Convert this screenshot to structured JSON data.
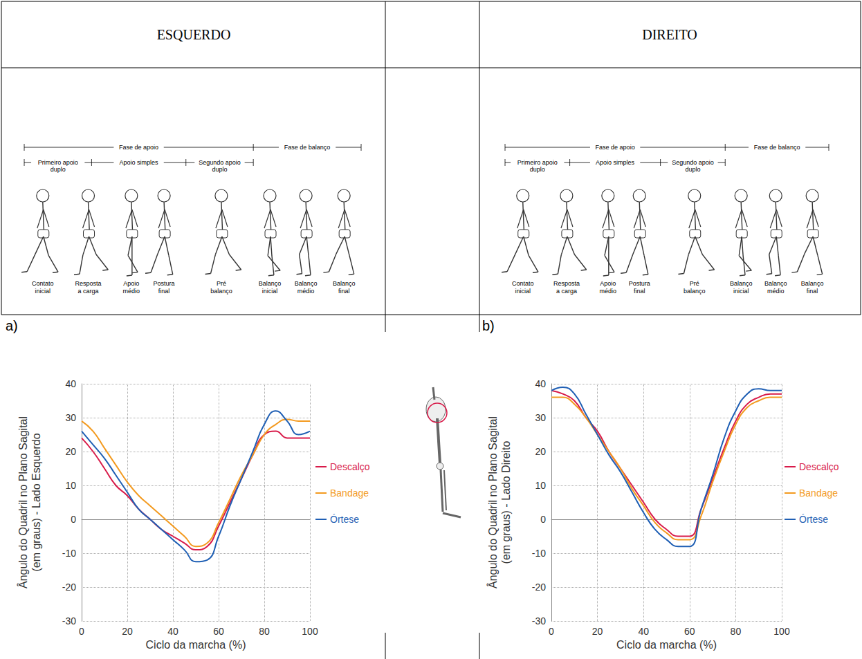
{
  "header": {
    "left": "ESQUERDO",
    "right": "DIREITO"
  },
  "gait_diagram": {
    "stance": "Fase de apoio",
    "swing": "Fase de balanço",
    "sub_phases": [
      "Primeiro apoio duplo",
      "Apoio simples",
      "Segundo apoio duplo"
    ],
    "phases": [
      "Contato inicial",
      "Resposta a carga",
      "Apoio médio",
      "Postura final",
      "Pré balanço",
      "Balanço inicial",
      "Balanço médio",
      "Balanço final"
    ]
  },
  "chart_data": [
    {
      "type": "line",
      "panel": "a)",
      "x_label": "Ciclo da marcha (%)",
      "y_label": "Ângulo do Quadril no Plano Sagital (em graus) - Lado Esquerdo",
      "xlim": [
        0,
        100
      ],
      "xticks": [
        0,
        20,
        40,
        60,
        80,
        100
      ],
      "ylim": [
        -30,
        40
      ],
      "yticks": [
        -30,
        -20,
        -10,
        0,
        10,
        20,
        30,
        40
      ],
      "grid": true,
      "legend": "right",
      "x": [
        0,
        5,
        10,
        15,
        20,
        25,
        30,
        35,
        40,
        45,
        50,
        55,
        60,
        65,
        70,
        75,
        80,
        85,
        90,
        95,
        100
      ],
      "series": [
        {
          "name": "Descalço",
          "color": "#d81b4a",
          "values": [
            24,
            20,
            15,
            10,
            7,
            3,
            0,
            -3,
            -5,
            -7,
            -9,
            -8,
            -2,
            5,
            12,
            19,
            25,
            26,
            24,
            24,
            24
          ]
        },
        {
          "name": "Bandage",
          "color": "#f39a1f",
          "values": [
            29,
            26,
            21,
            16,
            11,
            7,
            4,
            1,
            -2,
            -5,
            -8,
            -7,
            -1,
            6,
            13,
            19,
            25,
            28,
            29.5,
            29,
            29
          ]
        },
        {
          "name": "Órtese",
          "color": "#1f5fb4",
          "values": [
            26,
            22,
            18,
            13,
            8,
            3,
            0,
            -3,
            -6,
            -9,
            -12.5,
            -12,
            -5,
            4,
            12,
            20,
            28,
            32,
            29,
            25,
            26
          ]
        }
      ]
    },
    {
      "type": "line",
      "panel": "b)",
      "x_label": "Ciclo da marcha (%)",
      "y_label": "Ângulo do Quadril no Plano Sagital (em graus) - Lado Direito",
      "xlim": [
        0,
        100
      ],
      "xticks": [
        0,
        20,
        40,
        60,
        80,
        100
      ],
      "ylim": [
        -30,
        40
      ],
      "yticks": [
        -30,
        -20,
        -10,
        0,
        10,
        20,
        30,
        40
      ],
      "grid": true,
      "legend": "right",
      "x": [
        0,
        5,
        10,
        15,
        20,
        25,
        30,
        35,
        40,
        45,
        50,
        55,
        60,
        65,
        70,
        75,
        80,
        85,
        90,
        95,
        100
      ],
      "series": [
        {
          "name": "Descalço",
          "color": "#d81b4a",
          "values": [
            38,
            37,
            35,
            30,
            26,
            20,
            15,
            10,
            5,
            0,
            -3,
            -5,
            -5,
            3,
            12,
            21,
            29,
            34,
            36,
            37,
            37
          ]
        },
        {
          "name": "Bandage",
          "color": "#f39a1f",
          "values": [
            36,
            36,
            34,
            30,
            25,
            20,
            15,
            9,
            4,
            -1,
            -4,
            -6,
            -6,
            1,
            11,
            20,
            28,
            33,
            35,
            36,
            36
          ]
        },
        {
          "name": "Órtese",
          "color": "#1f5fb4",
          "values": [
            38,
            39,
            37,
            31,
            25,
            19,
            14,
            8,
            2,
            -3,
            -6,
            -8,
            -8,
            3,
            13,
            24,
            32,
            37,
            38.5,
            38,
            38
          ]
        }
      ]
    }
  ]
}
